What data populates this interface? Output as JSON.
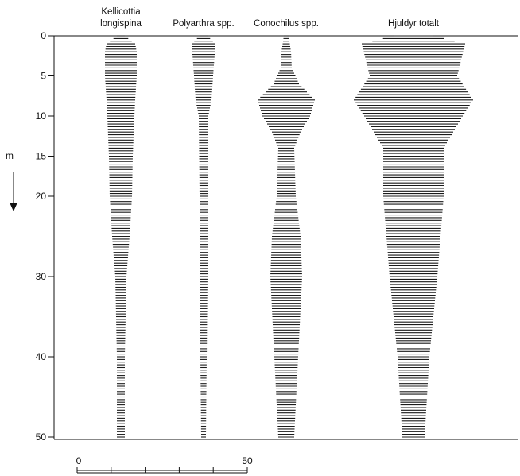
{
  "chart_data": {
    "type": "bar",
    "orientation": "horizontal-symmetric",
    "y_axis": {
      "label": "m",
      "range": [
        0,
        50
      ],
      "ticks": [
        0,
        5,
        10,
        15,
        20,
        30,
        40,
        50
      ]
    },
    "x_scale_bar": {
      "range": [
        0,
        50
      ],
      "labels": [
        "0",
        "50"
      ]
    },
    "series": [
      {
        "name": "Kellicottia longispina",
        "title_lines": [
          "Kellicottia",
          "longispina"
        ],
        "profile": [
          {
            "depth": 0,
            "value": 5
          },
          {
            "depth": 1,
            "value": 18
          },
          {
            "depth": 2,
            "value": 20
          },
          {
            "depth": 5,
            "value": 20
          },
          {
            "depth": 8,
            "value": 18
          },
          {
            "depth": 10,
            "value": 17
          },
          {
            "depth": 15,
            "value": 15
          },
          {
            "depth": 20,
            "value": 14
          },
          {
            "depth": 25,
            "value": 11
          },
          {
            "depth": 30,
            "value": 7
          },
          {
            "depth": 40,
            "value": 5
          },
          {
            "depth": 50,
            "value": 5
          }
        ]
      },
      {
        "name": "Polyarthra spp.",
        "title_lines": [
          "Polyarthra spp."
        ],
        "profile": [
          {
            "depth": 0,
            "value": 5
          },
          {
            "depth": 1,
            "value": 15
          },
          {
            "depth": 5,
            "value": 12
          },
          {
            "depth": 8,
            "value": 10
          },
          {
            "depth": 10,
            "value": 6
          },
          {
            "depth": 20,
            "value": 5
          },
          {
            "depth": 30,
            "value": 5
          },
          {
            "depth": 40,
            "value": 4
          },
          {
            "depth": 50,
            "value": 3
          }
        ]
      },
      {
        "name": "Conochilus spp.",
        "title_lines": [
          "Conochilus spp."
        ],
        "profile": [
          {
            "depth": 0,
            "value": 3
          },
          {
            "depth": 2,
            "value": 6
          },
          {
            "depth": 4,
            "value": 7
          },
          {
            "depth": 6,
            "value": 16
          },
          {
            "depth": 8,
            "value": 36
          },
          {
            "depth": 10,
            "value": 30
          },
          {
            "depth": 12,
            "value": 18
          },
          {
            "depth": 14,
            "value": 10
          },
          {
            "depth": 20,
            "value": 12
          },
          {
            "depth": 25,
            "value": 18
          },
          {
            "depth": 30,
            "value": 20
          },
          {
            "depth": 40,
            "value": 15
          },
          {
            "depth": 50,
            "value": 10
          }
        ]
      },
      {
        "name": "Hjuldyr totalt",
        "title_lines": [
          "Hjuldyr totalt"
        ],
        "profile": [
          {
            "depth": 0,
            "value": 25
          },
          {
            "depth": 1,
            "value": 65
          },
          {
            "depth": 5,
            "value": 55
          },
          {
            "depth": 8,
            "value": 75
          },
          {
            "depth": 10,
            "value": 62
          },
          {
            "depth": 14,
            "value": 38
          },
          {
            "depth": 20,
            "value": 38
          },
          {
            "depth": 30,
            "value": 30
          },
          {
            "depth": 40,
            "value": 20
          },
          {
            "depth": 50,
            "value": 14
          }
        ]
      }
    ]
  }
}
